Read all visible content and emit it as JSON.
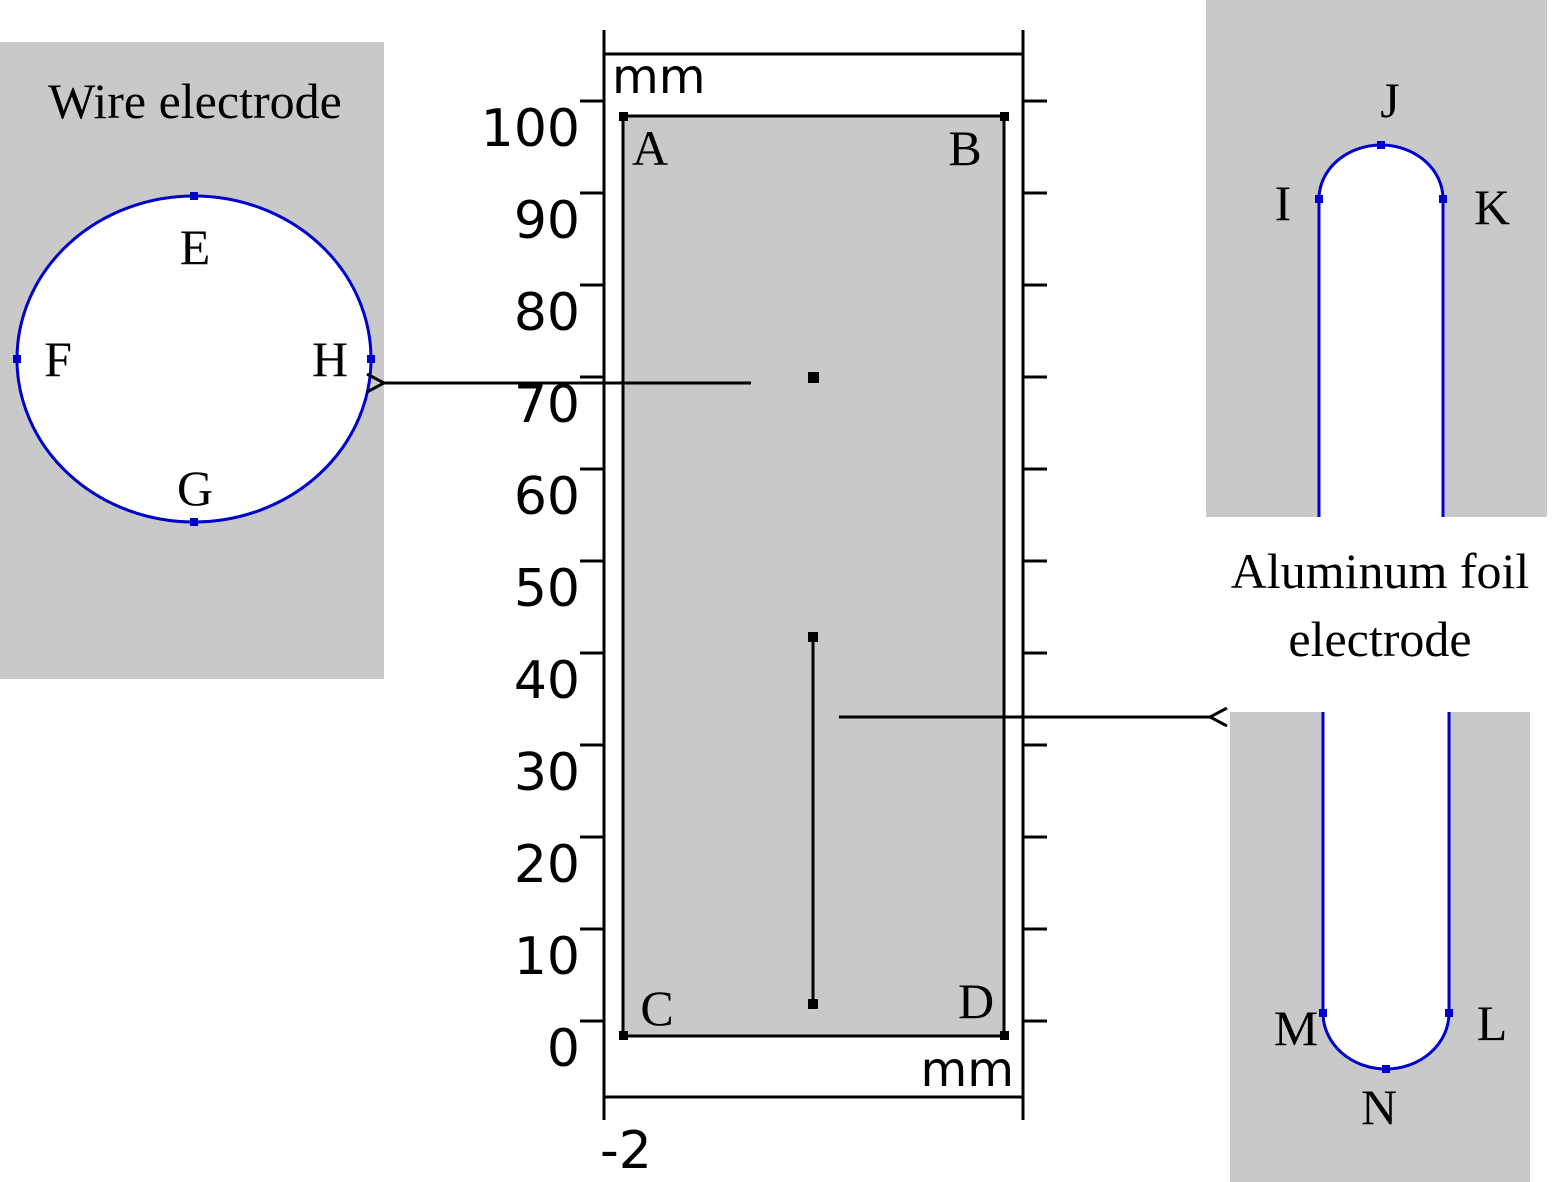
{
  "wire_panel": {
    "title": "Wire electrode",
    "points": [
      "E",
      "F",
      "H",
      "G"
    ]
  },
  "domain_panel": {
    "y_unit": "mm",
    "x_unit": "mm",
    "y_ticks": [
      "100",
      "90",
      "80",
      "70",
      "60",
      "50",
      "40",
      "30",
      "20",
      "10",
      "0"
    ],
    "x_tick": "-2",
    "corners": [
      "A",
      "B",
      "C",
      "D"
    ]
  },
  "foil_panel": {
    "label_line1": "Aluminum foil",
    "label_line2": "electrode",
    "top_points": [
      "I",
      "J",
      "K"
    ],
    "bottom_points": [
      "M",
      "N",
      "L"
    ]
  },
  "colors": {
    "panel_gray": "#c9c9c9",
    "electrode_blue": "#0000cc",
    "line_black": "#000000"
  }
}
